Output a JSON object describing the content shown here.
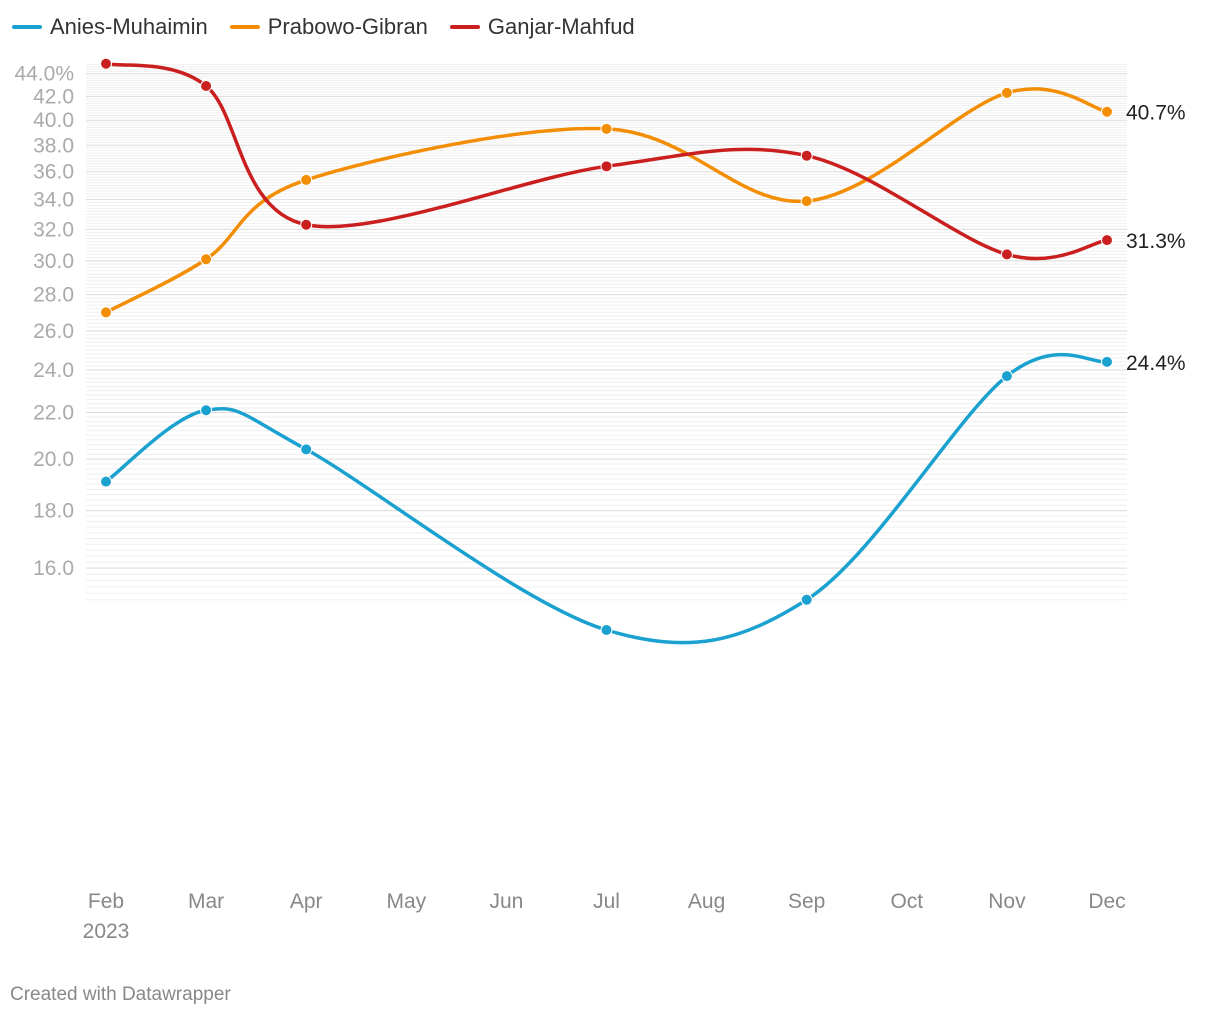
{
  "chart_data": {
    "type": "line",
    "title": "",
    "xlabel": "",
    "ylabel": "",
    "x_ticks": [
      "Feb",
      "Mar",
      "Apr",
      "May",
      "Jun",
      "Jul",
      "Aug",
      "Sep",
      "Oct",
      "Nov",
      "Dec"
    ],
    "x_year_label": "2023",
    "y_ticks": [
      {
        "value": 44,
        "label": "44.0%"
      },
      {
        "value": 42,
        "label": "42.0"
      },
      {
        "value": 40,
        "label": "40.0"
      },
      {
        "value": 38,
        "label": "38.0"
      },
      {
        "value": 36,
        "label": "36.0"
      },
      {
        "value": 34,
        "label": "34.0"
      },
      {
        "value": 32,
        "label": "32.0"
      },
      {
        "value": 30,
        "label": "30.0"
      },
      {
        "value": 28,
        "label": "28.0"
      },
      {
        "value": 26,
        "label": "26.0"
      },
      {
        "value": 24,
        "label": "24.0"
      },
      {
        "value": 22,
        "label": "22.0"
      },
      {
        "value": 20,
        "label": "20.0"
      },
      {
        "value": 18,
        "label": "18.0"
      },
      {
        "value": 16,
        "label": "16.0"
      }
    ],
    "y_scale": "log",
    "grid": true,
    "legend_position": "top-left",
    "series": [
      {
        "name": "Anies-Muhaimin",
        "color": "#1ba1cf",
        "points": [
          {
            "month": "Feb",
            "value": 19.1
          },
          {
            "month": "Mar",
            "value": 22.1
          },
          {
            "month": "Apr",
            "value": 20.4
          },
          {
            "month": "Jul",
            "value": 14.1
          },
          {
            "month": "Sep",
            "value": 15.0
          },
          {
            "month": "Nov",
            "value": 23.7
          },
          {
            "month": "Dec",
            "value": 24.4
          }
        ],
        "end_label": "24.4%"
      },
      {
        "name": "Prabowo-Gibran",
        "color": "#f38d02",
        "points": [
          {
            "month": "Feb",
            "value": 27.0
          },
          {
            "month": "Mar",
            "value": 30.1
          },
          {
            "month": "Apr",
            "value": 35.4
          },
          {
            "month": "Jul",
            "value": 39.3
          },
          {
            "month": "Sep",
            "value": 33.9
          },
          {
            "month": "Nov",
            "value": 42.3
          },
          {
            "month": "Dec",
            "value": 40.7
          }
        ],
        "end_label": "40.7%"
      },
      {
        "name": "Ganjar-Mahfud",
        "color": "#c9201f",
        "points": [
          {
            "month": "Feb",
            "value": 44.9
          },
          {
            "month": "Mar",
            "value": 42.9
          },
          {
            "month": "Apr",
            "value": 32.3
          },
          {
            "month": "Jul",
            "value": 36.4
          },
          {
            "month": "Sep",
            "value": 37.2
          },
          {
            "month": "Nov",
            "value": 30.4
          },
          {
            "month": "Dec",
            "value": 31.3
          }
        ],
        "end_label": "31.3%"
      }
    ]
  },
  "footer": {
    "credit": "Created with Datawrapper"
  }
}
